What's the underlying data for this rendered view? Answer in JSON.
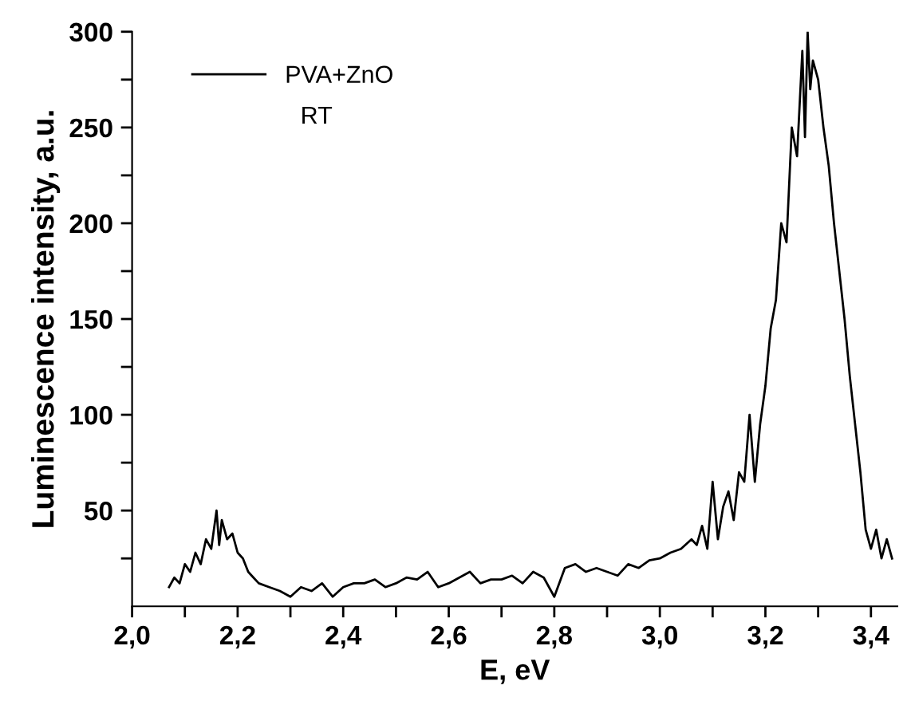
{
  "chart_data": {
    "type": "line",
    "xlabel": "E, eV",
    "ylabel": "Luminescence intensity, a.u.",
    "xlim": [
      2.0,
      3.45
    ],
    "ylim": [
      0,
      300
    ],
    "xticks": [
      {
        "value": 2.0,
        "label": "2,0"
      },
      {
        "value": 2.1,
        "label": null
      },
      {
        "value": 2.2,
        "label": "2,2"
      },
      {
        "value": 2.3,
        "label": null
      },
      {
        "value": 2.4,
        "label": "2,4"
      },
      {
        "value": 2.5,
        "label": null
      },
      {
        "value": 2.6,
        "label": "2,6"
      },
      {
        "value": 2.7,
        "label": null
      },
      {
        "value": 2.8,
        "label": "2,8"
      },
      {
        "value": 2.9,
        "label": null
      },
      {
        "value": 3.0,
        "label": "3,0"
      },
      {
        "value": 3.1,
        "label": null
      },
      {
        "value": 3.2,
        "label": "3,2"
      },
      {
        "value": 3.3,
        "label": null
      },
      {
        "value": 3.4,
        "label": "3,4"
      }
    ],
    "yticks": [
      {
        "value": 25,
        "label": null
      },
      50,
      {
        "value": 75,
        "label": null
      },
      100,
      {
        "value": 125,
        "label": null
      },
      150,
      {
        "value": 175,
        "label": null
      },
      200,
      {
        "value": 225,
        "label": null
      },
      250,
      {
        "value": 275,
        "label": null
      },
      300
    ],
    "grid": false,
    "legend": "top left",
    "marker": "none",
    "line_style": "solid",
    "annotations": [
      "RT"
    ],
    "series": [
      {
        "name": "PVA+ZnO",
        "color": "#000000",
        "x": [
          2.07,
          2.08,
          2.09,
          2.1,
          2.11,
          2.12,
          2.13,
          2.14,
          2.15,
          2.16,
          2.165,
          2.17,
          2.18,
          2.19,
          2.2,
          2.21,
          2.22,
          2.23,
          2.24,
          2.26,
          2.28,
          2.3,
          2.32,
          2.34,
          2.36,
          2.38,
          2.4,
          2.42,
          2.44,
          2.46,
          2.48,
          2.5,
          2.52,
          2.54,
          2.56,
          2.58,
          2.6,
          2.62,
          2.64,
          2.66,
          2.68,
          2.7,
          2.72,
          2.74,
          2.76,
          2.78,
          2.8,
          2.82,
          2.84,
          2.86,
          2.88,
          2.9,
          2.92,
          2.94,
          2.96,
          2.98,
          3.0,
          3.02,
          3.04,
          3.06,
          3.07,
          3.08,
          3.09,
          3.1,
          3.11,
          3.12,
          3.13,
          3.14,
          3.15,
          3.16,
          3.17,
          3.18,
          3.19,
          3.2,
          3.21,
          3.22,
          3.23,
          3.24,
          3.25,
          3.26,
          3.27,
          3.275,
          3.28,
          3.285,
          3.29,
          3.3,
          3.31,
          3.32,
          3.33,
          3.34,
          3.35,
          3.36,
          3.37,
          3.38,
          3.39,
          3.4,
          3.41,
          3.42,
          3.43,
          3.44
        ],
        "values": [
          10,
          15,
          12,
          22,
          18,
          28,
          22,
          35,
          30,
          50,
          32,
          45,
          35,
          38,
          28,
          25,
          18,
          15,
          12,
          10,
          8,
          5,
          10,
          8,
          12,
          5,
          10,
          12,
          12,
          14,
          10,
          12,
          15,
          14,
          18,
          10,
          12,
          15,
          18,
          12,
          14,
          14,
          16,
          12,
          18,
          15,
          5,
          20,
          22,
          18,
          20,
          18,
          16,
          22,
          20,
          24,
          25,
          28,
          30,
          35,
          32,
          42,
          30,
          65,
          35,
          52,
          60,
          45,
          70,
          65,
          100,
          65,
          95,
          115,
          145,
          160,
          200,
          190,
          250,
          235,
          290,
          245,
          300,
          270,
          285,
          275,
          250,
          230,
          200,
          175,
          150,
          120,
          95,
          70,
          40,
          30,
          40,
          25,
          35,
          25
        ]
      }
    ]
  }
}
